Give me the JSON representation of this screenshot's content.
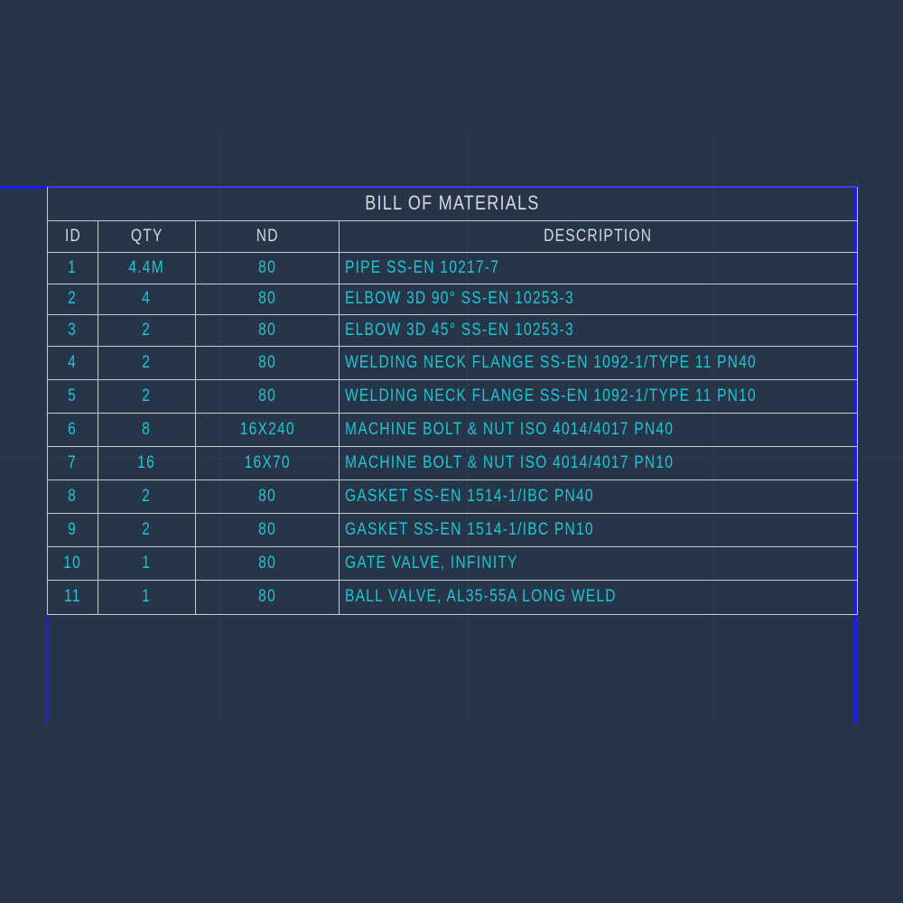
{
  "title": "BILL OF MATERIALS",
  "columns": [
    "ID",
    "QTY",
    "ND",
    "DESCRIPTION"
  ],
  "rows": [
    [
      "1",
      "4.4M",
      "80",
      "PIPE  SS-EN 10217-7"
    ],
    [
      "2",
      "4",
      "80",
      "ELBOW 3D 90°  SS-EN 10253-3"
    ],
    [
      "3",
      "2",
      "80",
      "ELBOW 3D 45°  SS-EN 10253-3"
    ],
    [
      "4",
      "2",
      "80",
      "WELDING NECK FLANGE  SS-EN 1092-1/TYPE 11  PN40"
    ],
    [
      "5",
      "2",
      "80",
      "WELDING NECK FLANGE  SS-EN 1092-1/TYPE 11  PN10"
    ],
    [
      "6",
      "8",
      "16X240",
      "MACHINE BOLT & NUT  ISO 4014/4017  PN40"
    ],
    [
      "7",
      "16",
      "16X70",
      "MACHINE BOLT & NUT  ISO 4014/4017  PN10"
    ],
    [
      "8",
      "2",
      "80",
      "GASKET  SS-EN 1514-1/IBC  PN40"
    ],
    [
      "9",
      "2",
      "80",
      "GASKET  SS-EN 1514-1/IBC  PN10"
    ],
    [
      "10",
      "1",
      "80",
      "GATE VALVE, INFINITY"
    ],
    [
      "11",
      "1",
      "80",
      "BALL VALVE, AL35-55A LONG WELD"
    ]
  ],
  "colors": {
    "background": "#263548",
    "text": "#1ec6d4",
    "header_text": "#d6d9de",
    "border": "#1a1aff"
  }
}
